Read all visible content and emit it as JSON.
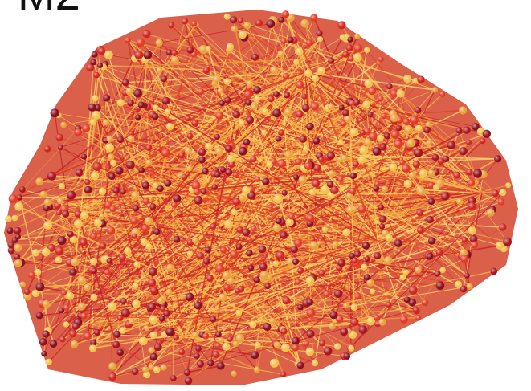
{
  "label": "M2"
}
